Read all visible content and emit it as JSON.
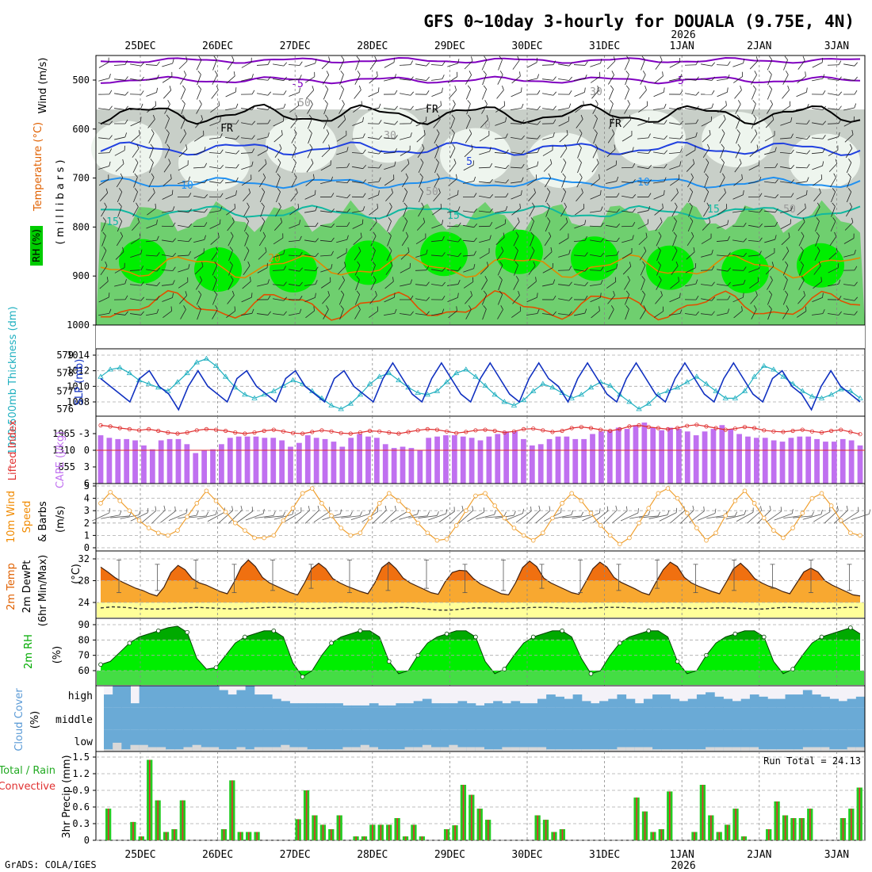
{
  "title": "GFS 0~10day 3-hourly for DOUALA (9.75E, 4N)",
  "year_label": "2026",
  "credit": "GrADS: COLA/IGES",
  "dates": [
    "25DEC",
    "26DEC",
    "27DEC",
    "28DEC",
    "29DEC",
    "30DEC",
    "31DEC",
    "1JAN",
    "2JAN",
    "3JAN"
  ],
  "panels": {
    "upper": {
      "ylabel_wind": "Wind (m/s)",
      "ylabel_temp": "Temperature (°C)",
      "ylabel_mb": "( m i l l i b a r s )",
      "ylabel_rh": "RH (%)",
      "levels": [
        500,
        600,
        700,
        800,
        900,
        1000
      ],
      "isotherm_labels": [
        "-5",
        "-5",
        "FR",
        "FR",
        "FR",
        "5",
        "10",
        "10",
        "15",
        "15",
        "15",
        "20",
        "0",
        "30",
        "50",
        "50",
        "30",
        "50"
      ]
    },
    "thickness": {
      "ylabel_left": "1000-500mb Thickness (dm)",
      "ylabel_right": "SLP (mb)",
      "thick_ticks": [
        576,
        577,
        578,
        579
      ],
      "slp_ticks": [
        1008,
        1010,
        1012,
        1014
      ]
    },
    "lifted": {
      "ylabel_left": "Lifted Index",
      "ylabel_right": "CAPE (J/kg)",
      "li_ticks": [
        "-3",
        "0",
        "3",
        "6"
      ],
      "cape_ticks": [
        "1965",
        "1310",
        "655"
      ]
    },
    "wind10": {
      "ylabel": "10m Wind Speed & Barbs (m/s)",
      "ylabel1": "10m Wind",
      "ylabel2": "Speed",
      "ylabel3": "& Barbs",
      "ylabel4": "(m/s)",
      "ticks": [
        0,
        1,
        2,
        3,
        4,
        5
      ]
    },
    "temp2m": {
      "ylabel1": "2m Temp",
      "ylabel2": "2m DewPt",
      "ylabel3": "(6hr Min/Max)",
      "ylabel4": "(°C)",
      "ticks": [
        24,
        28,
        32
      ]
    },
    "rh2m": {
      "ylabel1": "2m RH",
      "ylabel2": "(%)",
      "ticks": [
        60,
        70,
        80,
        90
      ]
    },
    "cloud": {
      "ylabel1": "Cloud Cover",
      "ylabel2": "(%)",
      "levels": [
        "high",
        "middle",
        "low"
      ]
    },
    "precip": {
      "ylabel1": "Total / Rain",
      "ylabel2": "Convective",
      "ylabel3": "3hr Precip (mm)",
      "ticks": [
        "0",
        "0.3",
        "0.6",
        "0.9",
        "1.2",
        "1.5"
      ],
      "run_total": "Run Total = 24.13"
    }
  },
  "chart_data": {
    "type": "meteogram",
    "x_dates": [
      "25DEC",
      "26DEC",
      "27DEC",
      "28DEC",
      "29DEC",
      "30DEC",
      "31DEC",
      "1JAN",
      "2JAN",
      "3JAN"
    ],
    "slp_mb": [
      1011,
      1010,
      1009,
      1008,
      1011,
      1012,
      1010,
      1009,
      1007,
      1010,
      1012,
      1010,
      1009,
      1008,
      1011,
      1012,
      1010,
      1009,
      1008,
      1011,
      1012,
      1010,
      1009,
      1008,
      1011,
      1012,
      1010,
      1009,
      1008,
      1011,
      1013,
      1011,
      1009,
      1008,
      1011,
      1013,
      1011,
      1009,
      1008,
      1011,
      1013,
      1011,
      1009,
      1008,
      1011,
      1013,
      1011,
      1010,
      1008,
      1011,
      1013,
      1011,
      1009,
      1008,
      1011,
      1013,
      1011,
      1009,
      1008,
      1011,
      1013,
      1011,
      1009,
      1008,
      1011,
      1013,
      1011,
      1009,
      1008,
      1011,
      1012,
      1010,
      1009,
      1007,
      1010,
      1012,
      1010,
      1009,
      1008
    ],
    "thickness_dm": [
      577.8,
      578.2,
      578.3,
      578.0,
      577.6,
      577.4,
      577.2,
      577.0,
      577.5,
      578.0,
      578.6,
      578.8,
      578.4,
      577.8,
      577.2,
      576.8,
      576.6,
      576.8,
      577.0,
      577.3,
      577.6,
      577.4,
      577.0,
      576.6,
      576.2,
      576.0,
      576.3,
      576.8,
      577.4,
      577.8,
      578.0,
      577.6,
      577.2,
      576.9,
      576.8,
      577.0,
      577.5,
      578.0,
      578.2,
      577.8,
      577.3,
      576.8,
      576.4,
      576.2,
      576.5,
      577.0,
      577.4,
      577.2,
      576.9,
      576.6,
      576.8,
      577.2,
      577.5,
      577.3,
      576.8,
      576.4,
      576.0,
      576.3,
      576.8,
      577.0,
      577.2,
      577.5,
      577.8,
      577.4,
      577.0,
      576.6,
      576.6,
      577.0,
      577.8,
      578.4,
      578.2,
      577.8,
      577.4,
      577.0,
      576.7,
      576.6,
      576.8,
      577.1,
      577.0,
      576.6
    ],
    "lifted_index": [
      -4.5,
      -4.3,
      -4.0,
      -3.8,
      -3.6,
      -3.8,
      -3.5,
      -3.2,
      -3.0,
      -3.2,
      -3.6,
      -3.8,
      -3.7,
      -3.5,
      -3.2,
      -3.0,
      -3.2,
      -3.5,
      -3.7,
      -3.4,
      -3.1,
      -3.0,
      -3.3,
      -3.6,
      -3.4,
      -3.1,
      -3.0,
      -3.2,
      -3.5,
      -3.4,
      -3.2,
      -3.0,
      -3.3,
      -3.6,
      -3.8,
      -3.7,
      -3.4,
      -3.1,
      -3.3,
      -3.6,
      -3.7,
      -3.5,
      -3.2,
      -3.4,
      -3.8,
      -3.9,
      -3.6,
      -3.3,
      -3.5,
      -4.0,
      -4.2,
      -4.0,
      -3.7,
      -3.5,
      -3.8,
      -4.3,
      -4.5,
      -4.2,
      -4.0,
      -3.8,
      -4.0,
      -4.4,
      -4.6,
      -4.3,
      -4.0,
      -3.7,
      -3.9,
      -4.2,
      -4.0,
      -3.6,
      -3.4,
      -3.3,
      -3.5,
      -3.7,
      -3.4,
      -3.2,
      -3.5,
      -3.7,
      -3.3,
      -2.9
    ],
    "cape_jkg": [
      1900,
      1800,
      1750,
      1750,
      1700,
      1500,
      1350,
      1700,
      1750,
      1750,
      1550,
      1200,
      1300,
      1350,
      1550,
      1800,
      1850,
      1850,
      1850,
      1800,
      1800,
      1700,
      1450,
      1600,
      1900,
      1800,
      1750,
      1650,
      1450,
      1800,
      1950,
      1850,
      1800,
      1550,
      1400,
      1450,
      1400,
      1300,
      1800,
      1850,
      1900,
      1900,
      1850,
      1800,
      1700,
      1850,
      1950,
      2050,
      2050,
      1750,
      1500,
      1550,
      1750,
      1850,
      1850,
      1750,
      1750,
      1950,
      2050,
      2100,
      2200,
      2150,
      2300,
      2400,
      2200,
      2100,
      2200,
      2150,
      2050,
      1900,
      2050,
      2150,
      2300,
      2150,
      1950,
      1850,
      1800,
      1800,
      1700,
      1650,
      1800,
      1850,
      1850,
      1750,
      1650,
      1650,
      1750,
      1700,
      1500
    ],
    "wind10_ms": [
      3.6,
      4.5,
      3.8,
      3.0,
      2.2,
      1.6,
      1.2,
      1.0,
      1.4,
      2.5,
      3.6,
      4.6,
      3.8,
      2.9,
      2.0,
      1.4,
      0.8,
      0.8,
      1.0,
      2.2,
      3.2,
      4.4,
      4.8,
      3.6,
      2.6,
      1.6,
      1.0,
      1.2,
      2.4,
      3.6,
      4.4,
      3.8,
      3.0,
      2.0,
      1.2,
      0.6,
      0.7,
      1.8,
      3.0,
      4.2,
      4.4,
      3.4,
      2.4,
      1.6,
      1.0,
      0.6,
      1.2,
      2.4,
      3.6,
      4.4,
      3.8,
      2.8,
      1.8,
      1.0,
      0.3,
      0.8,
      2.0,
      3.2,
      4.4,
      4.8,
      4.0,
      2.8,
      1.6,
      0.6,
      1.2,
      2.6,
      3.8,
      4.6,
      3.6,
      2.4,
      1.4,
      0.8,
      1.6,
      2.8,
      4.0,
      4.4,
      3.4,
      2.2,
      1.2,
      1.0
    ],
    "temp2m_c": [
      30.5,
      29.6,
      28.6,
      27.8,
      27.2,
      26.6,
      26.2,
      25.6,
      25.2,
      26.8,
      29.5,
      30.8,
      30.0,
      28.4,
      27.6,
      27.2,
      26.6,
      26.0,
      25.6,
      27.8,
      30.5,
      31.8,
      30.6,
      28.6,
      27.6,
      27.0,
      26.4,
      25.8,
      25.4,
      27.6,
      30.2,
      31.2,
      30.2,
      28.4,
      27.6,
      27.0,
      26.5,
      26.0,
      25.6,
      27.6,
      30.4,
      31.4,
      30.2,
      28.5,
      27.6,
      27.0,
      26.4,
      25.8,
      25.5,
      27.8,
      29.5,
      29.9,
      29.8,
      28.4,
      27.4,
      26.8,
      26.2,
      25.6,
      25.4,
      27.6,
      30.4,
      31.6,
      30.6,
      28.5,
      27.6,
      27.0,
      26.4,
      25.8,
      25.5,
      27.8,
      30.2,
      31.4,
      30.5,
      28.6,
      27.7,
      27.1,
      26.5,
      25.8,
      25.4,
      27.8,
      30.0,
      31.4,
      30.6,
      28.6,
      27.6,
      27.0,
      26.5,
      26.0,
      25.6,
      27.8,
      30.2,
      31.2,
      30.0,
      28.4,
      27.6,
      27.0,
      26.6,
      26.0,
      25.6,
      27.6,
      29.6,
      30.3,
      29.6,
      28.0,
      27.2,
      26.6,
      26.0,
      25.4,
      25.2
    ],
    "dewpt2m_c": [
      23.0,
      23.2,
      23.1,
      22.9,
      22.8,
      22.8,
      22.9,
      23.0,
      23.1,
      23.0,
      22.9,
      22.8,
      22.9,
      23.0,
      23.1,
      23.1,
      23.0,
      22.9,
      22.9,
      23.0,
      23.1,
      23.0,
      23.0,
      22.9,
      23.0,
      23.1,
      23.0,
      22.8,
      22.6,
      22.6,
      22.8,
      23.0,
      23.0,
      22.9,
      22.9,
      23.0,
      23.1,
      23.1,
      23.0,
      22.9,
      22.9,
      23.0,
      23.1,
      23.1,
      23.0,
      22.9,
      22.9,
      23.0,
      23.0,
      22.9,
      22.9,
      23.0,
      23.0,
      22.9,
      22.8,
      22.8,
      23.0,
      23.1,
      23.0,
      22.9,
      22.9,
      23.0,
      23.1,
      23.1
    ],
    "rh2m_pct": [
      64,
      66,
      72,
      78,
      82,
      84,
      86,
      88,
      89,
      85,
      68,
      61,
      62,
      70,
      78,
      82,
      84,
      86,
      86,
      82,
      65,
      56,
      60,
      70,
      78,
      82,
      84,
      86,
      86,
      82,
      66,
      58,
      60,
      70,
      78,
      82,
      84,
      86,
      86,
      82,
      66,
      58,
      61,
      70,
      78,
      82,
      84,
      86,
      86,
      82,
      68,
      58,
      60,
      70,
      78,
      82,
      84,
      86,
      86,
      82,
      66,
      58,
      60,
      70,
      78,
      82,
      84,
      86,
      86,
      82,
      66,
      58,
      61,
      70,
      78,
      82,
      84,
      86,
      88,
      84
    ],
    "cloud_high_pct": [
      60,
      100,
      100,
      20,
      100,
      100,
      100,
      100,
      100,
      100,
      100,
      100,
      100,
      80,
      60,
      80,
      100,
      60,
      60,
      40,
      30,
      20,
      20,
      20,
      20,
      20,
      20,
      10,
      10,
      10,
      20,
      10,
      10,
      20,
      20,
      30,
      40,
      20,
      20,
      20,
      30,
      20,
      10,
      20,
      30,
      20,
      30,
      20,
      20,
      40,
      60,
      50,
      40,
      60,
      30,
      20,
      30,
      40,
      60,
      40,
      20,
      40,
      60,
      60,
      40,
      30,
      40,
      60,
      70,
      50,
      40,
      30,
      40,
      60,
      50,
      40,
      40,
      60,
      60,
      80,
      60,
      50,
      40,
      30,
      40,
      50
    ],
    "cloud_mid_pct": [
      100,
      100,
      100,
      100,
      100,
      100,
      100,
      100,
      100,
      100,
      100,
      100,
      100,
      100,
      100,
      100,
      100,
      100,
      100,
      100,
      100,
      100,
      100,
      100,
      100,
      100,
      100,
      100,
      100,
      100,
      100,
      100,
      100,
      100,
      100,
      100,
      100,
      100,
      100,
      100,
      100,
      100,
      100,
      100,
      100,
      100,
      100,
      100,
      100,
      100,
      100,
      100,
      100,
      100,
      100,
      100,
      100,
      100,
      100,
      100,
      100,
      100,
      100,
      100,
      100,
      100,
      100,
      100,
      100,
      100,
      100,
      100,
      100,
      100,
      100,
      100,
      100,
      100,
      100,
      100
    ],
    "cloud_low_pct": [
      20,
      80,
      20,
      60,
      60,
      40,
      40,
      20,
      20,
      40,
      60,
      40,
      40,
      20,
      20,
      40,
      20,
      40,
      40,
      40,
      60,
      40,
      40,
      20,
      20,
      20,
      20,
      40,
      40,
      60,
      40,
      20,
      20,
      20,
      40,
      40,
      60,
      40,
      40,
      60,
      40,
      40,
      40,
      20,
      20,
      40,
      40,
      40,
      40,
      40,
      20,
      20,
      20,
      20,
      20,
      20,
      20,
      20,
      40,
      40,
      40,
      40,
      20,
      20,
      20,
      20,
      20,
      20,
      40,
      40,
      40,
      40,
      40,
      40,
      20,
      20,
      20,
      20,
      20,
      40,
      40,
      40,
      20,
      20,
      40,
      40,
      40,
      20,
      20
    ],
    "precip_mm": [
      0.57,
      0,
      0,
      0.33,
      0.07,
      1.45,
      0.72,
      0.15,
      0.2,
      0.72,
      0,
      0,
      0,
      0,
      0.2,
      1.08,
      0.15,
      0.15,
      0.15,
      0,
      0,
      0,
      0,
      0.38,
      0.9,
      0.45,
      0.28,
      0.2,
      0.45,
      0,
      0.07,
      0.07,
      0.28,
      0.28,
      0.28,
      0.4,
      0.07,
      0.28,
      0.07,
      0,
      0,
      0.2,
      0.27,
      1.0,
      0.82,
      0.57,
      0.37,
      0,
      0,
      0,
      0,
      0,
      0.45,
      0.37,
      0.15,
      0.2,
      0,
      0,
      0,
      0,
      0,
      0,
      0,
      0,
      0.77,
      0.52,
      0.15,
      0.2,
      0.88,
      0,
      0,
      0.15,
      1.0,
      0.45,
      0.15,
      0.28,
      0.57,
      0.07,
      0,
      0,
      0.2,
      0.7,
      0.45,
      0.4,
      0.4,
      0.57,
      0,
      0,
      0,
      0.4,
      0.57,
      0.95
    ],
    "run_total_mm": 24.13
  }
}
